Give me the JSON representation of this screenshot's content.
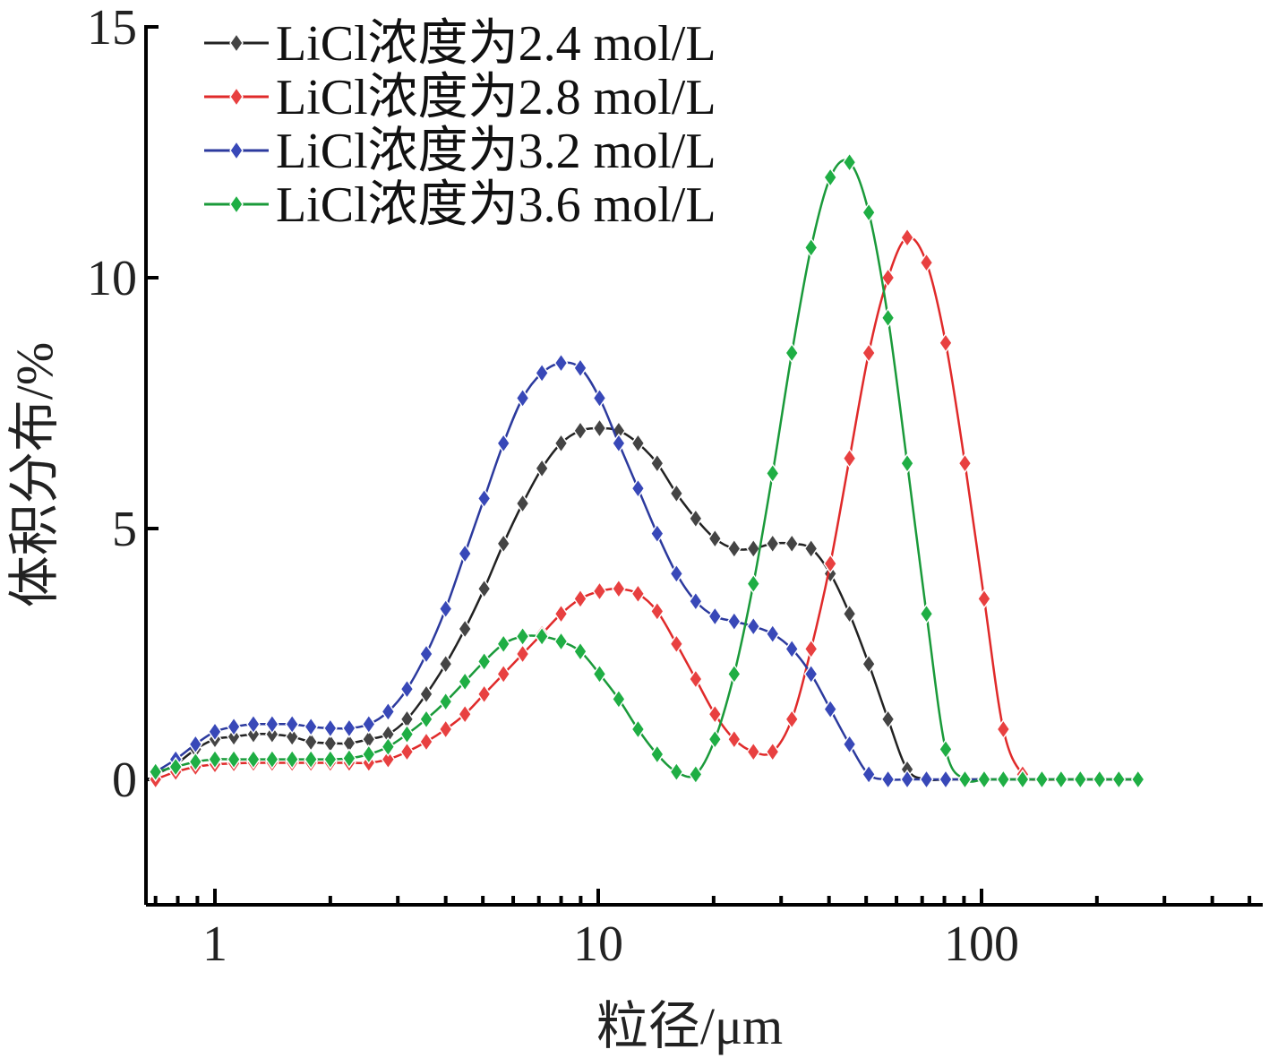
{
  "chart_data": {
    "type": "line",
    "xscale": "log",
    "xlabel": "粒径/μm",
    "ylabel": "体积分布/%",
    "xlim": [
      0.7,
      700
    ],
    "ylim": [
      -2.5,
      15
    ],
    "xticks": [
      {
        "value": 1,
        "label": "1"
      },
      {
        "value": 10,
        "label": "10"
      },
      {
        "value": 100,
        "label": "100"
      }
    ],
    "yticks": [
      {
        "value": 0,
        "label": "0"
      },
      {
        "value": 5,
        "label": "5"
      },
      {
        "value": 10,
        "label": "10"
      },
      {
        "value": 15,
        "label": "15"
      }
    ],
    "grid": false,
    "legend_position": "top-left",
    "x": [
      0.7,
      0.79,
      0.89,
      1.0,
      1.12,
      1.26,
      1.41,
      1.59,
      1.78,
      2.0,
      2.24,
      2.52,
      2.83,
      3.17,
      3.56,
      4.0,
      4.49,
      5.04,
      5.66,
      6.35,
      7.13,
      8.0,
      8.98,
      10.08,
      11.31,
      12.7,
      14.25,
      16.0,
      17.96,
      20.16,
      22.63,
      25.4,
      28.51,
      32.0,
      35.92,
      40.32,
      45.25,
      50.8,
      57.02,
      64.0,
      71.84,
      80.63,
      90.51,
      101.6,
      114.0,
      128.0,
      143.7,
      161.3,
      181.0,
      203.2,
      228.1,
      256.0
    ],
    "series": [
      {
        "name": "LiCl浓度为2.4 mol/L",
        "color": "#222222",
        "marker_fill": "#444444",
        "values": [
          0.1,
          0.3,
          0.6,
          0.8,
          0.85,
          0.9,
          0.9,
          0.85,
          0.75,
          0.72,
          0.72,
          0.8,
          0.9,
          1.2,
          1.7,
          2.3,
          3.0,
          3.8,
          4.7,
          5.5,
          6.2,
          6.7,
          6.95,
          7.0,
          6.95,
          6.7,
          6.3,
          5.7,
          5.2,
          4.8,
          4.6,
          4.6,
          4.7,
          4.7,
          4.6,
          4.1,
          3.3,
          2.3,
          1.2,
          0.2,
          0.0,
          0.0,
          0.0,
          0.0,
          0.0,
          0.0,
          0.0,
          0.0,
          0.0,
          0.0,
          0.0,
          0.0
        ]
      },
      {
        "name": "LiCl浓度为2.8 mol/L",
        "color": "#e02a2a",
        "marker_fill": "#e84040",
        "values": [
          0.0,
          0.15,
          0.25,
          0.3,
          0.32,
          0.33,
          0.33,
          0.33,
          0.33,
          0.33,
          0.33,
          0.33,
          0.4,
          0.55,
          0.75,
          1.0,
          1.3,
          1.7,
          2.1,
          2.5,
          2.9,
          3.3,
          3.6,
          3.75,
          3.8,
          3.7,
          3.35,
          2.7,
          2.0,
          1.3,
          0.8,
          0.55,
          0.55,
          1.2,
          2.6,
          4.3,
          6.4,
          8.5,
          10.0,
          10.8,
          10.3,
          8.7,
          6.3,
          3.6,
          1.0,
          0.1,
          0.0,
          0.0,
          0.0,
          0.0,
          0.0,
          0.0
        ]
      },
      {
        "name": "LiCl浓度为3.2 mol/L",
        "color": "#2c3a9e",
        "marker_fill": "#3848b8",
        "values": [
          0.15,
          0.4,
          0.7,
          0.95,
          1.05,
          1.1,
          1.1,
          1.1,
          1.05,
          1.02,
          1.02,
          1.1,
          1.35,
          1.8,
          2.5,
          3.4,
          4.5,
          5.6,
          6.7,
          7.6,
          8.1,
          8.3,
          8.2,
          7.6,
          6.7,
          5.8,
          4.9,
          4.1,
          3.55,
          3.25,
          3.15,
          3.05,
          2.9,
          2.6,
          2.1,
          1.4,
          0.7,
          0.1,
          0.0,
          0.0,
          0.0,
          0.0,
          0.0,
          0.0,
          0.0,
          0.0,
          0.0,
          0.0,
          0.0,
          0.0,
          0.0,
          0.0
        ]
      },
      {
        "name": "LiCl浓度为3.6 mol/L",
        "color": "#1a9a3a",
        "marker_fill": "#1fae44",
        "values": [
          0.15,
          0.25,
          0.35,
          0.4,
          0.4,
          0.4,
          0.4,
          0.4,
          0.4,
          0.4,
          0.42,
          0.5,
          0.65,
          0.9,
          1.2,
          1.55,
          1.95,
          2.35,
          2.7,
          2.85,
          2.85,
          2.75,
          2.55,
          2.1,
          1.6,
          1.0,
          0.5,
          0.15,
          0.1,
          0.8,
          2.1,
          3.9,
          6.1,
          8.5,
          10.6,
          12.0,
          12.3,
          11.3,
          9.2,
          6.3,
          3.3,
          0.6,
          0.0,
          0.0,
          0.0,
          0.0,
          0.0,
          0.0,
          0.0,
          0.0,
          0.0,
          0.0
        ]
      }
    ]
  }
}
